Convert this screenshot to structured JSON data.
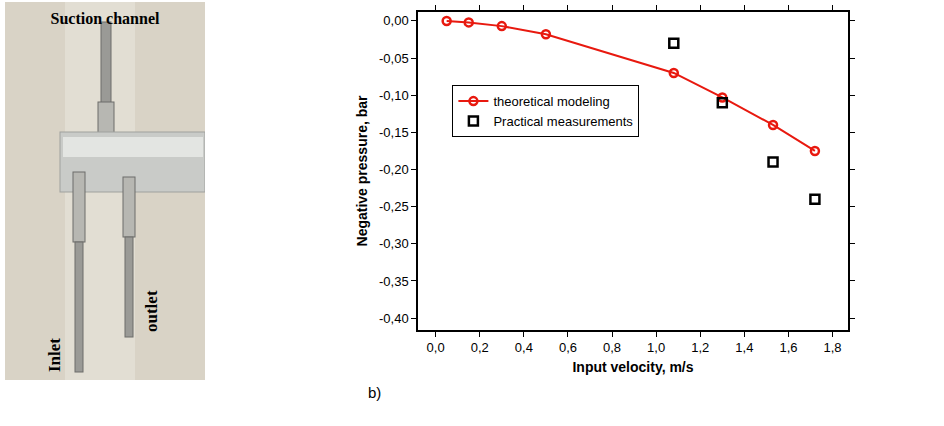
{
  "photo": {
    "labels": {
      "top": "Suction channel",
      "left": "Inlet",
      "right": "outlet"
    }
  },
  "panel_label": "b)",
  "chart_data": {
    "type": "scatter",
    "x_label": "Input velocity, m/s",
    "y_label": "Negative pressure, bar",
    "xlim": [
      -0.08,
      1.87
    ],
    "ylim": [
      -0.416,
      0.012
    ],
    "xticks": [
      {
        "value": 0,
        "label": "0,0"
      },
      {
        "value": 0.2,
        "label": "0,2"
      },
      {
        "value": 0.4,
        "label": "0,4"
      },
      {
        "value": 0.6,
        "label": "0,6"
      },
      {
        "value": 0.8,
        "label": "0,8"
      },
      {
        "value": 1.0,
        "label": "1,0"
      },
      {
        "value": 1.2,
        "label": "1,2"
      },
      {
        "value": 1.4,
        "label": "1,4"
      },
      {
        "value": 1.6,
        "label": "1,6"
      },
      {
        "value": 1.8,
        "label": "1,8"
      }
    ],
    "yticks": [
      {
        "value": 0,
        "label": "0,00"
      },
      {
        "value": -0.05,
        "label": "-0,05"
      },
      {
        "value": -0.1,
        "label": "-0,10"
      },
      {
        "value": -0.15,
        "label": "-0,15"
      },
      {
        "value": -0.2,
        "label": "-0,20"
      },
      {
        "value": -0.25,
        "label": "-0,25"
      },
      {
        "value": -0.3,
        "label": "-0,30"
      },
      {
        "value": -0.35,
        "label": "-0,35"
      },
      {
        "value": -0.4,
        "label": "-0,40"
      }
    ],
    "grid": false,
    "legend": "upper left",
    "series": [
      {
        "name": "theoretical modeling",
        "color": "#e8190f",
        "marker": "circle-open",
        "line_style": "solid",
        "x": [
          0.05,
          0.15,
          0.3,
          0.5,
          1.08,
          1.3,
          1.53,
          1.72
        ],
        "values": [
          0,
          -0.002,
          -0.007,
          -0.018,
          -0.07,
          -0.103,
          -0.14,
          -0.175
        ]
      },
      {
        "name": "Practical measurements",
        "color": "#000000",
        "marker": "square-open",
        "line_style": "none",
        "x": [
          1.08,
          1.3,
          1.53,
          1.72
        ],
        "values": [
          -0.03,
          -0.11,
          -0.19,
          -0.24
        ]
      }
    ]
  }
}
